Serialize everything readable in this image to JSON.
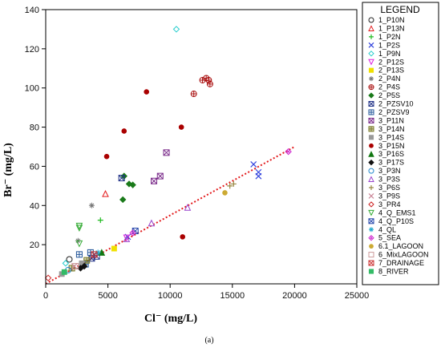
{
  "chart_data": {
    "type": "scatter",
    "xlabel": "Cl⁻ (mg/L)",
    "ylabel": "Br⁻ (mg/L)",
    "xlim": [
      0,
      25000
    ],
    "ylim": [
      0,
      140
    ],
    "x_ticks": [
      0,
      5000,
      10000,
      15000,
      20000,
      25000
    ],
    "y_ticks": [
      20,
      40,
      60,
      80,
      100,
      120,
      140
    ],
    "grid": false,
    "legend_title": "LEGEND",
    "legend_position": "right",
    "caption": "(a)",
    "trendline": {
      "style": "dotted",
      "color": "#e31a1c",
      "points": [
        [
          0,
          0
        ],
        [
          20000,
          70
        ]
      ]
    },
    "series": [
      {
        "name": "1_P10N",
        "marker": "circle-open",
        "color": "#222222",
        "points": [
          [
            1900,
            12.5
          ]
        ]
      },
      {
        "name": "1_P13N",
        "marker": "triangle-open",
        "color": "#e31a1c",
        "points": [
          [
            4800,
            46
          ]
        ]
      },
      {
        "name": "1_P2N",
        "marker": "plus",
        "color": "#22bb22",
        "points": [
          [
            4400,
            32.5
          ]
        ]
      },
      {
        "name": "1_P2S",
        "marker": "x",
        "color": "#3344dd",
        "points": [
          [
            16700,
            61
          ],
          [
            17100,
            55
          ],
          [
            17100,
            57
          ],
          [
            6600,
            24
          ]
        ]
      },
      {
        "name": "1_P9N",
        "marker": "diamond-open",
        "color": "#22cccc",
        "points": [
          [
            10500,
            130
          ],
          [
            1600,
            10.5
          ]
        ]
      },
      {
        "name": "2_P12S",
        "marker": "triangle-down-open",
        "color": "#dd22dd",
        "points": [
          [
            6500,
            23.5
          ]
        ]
      },
      {
        "name": "2_P13S",
        "marker": "square-filled",
        "color": "#f0e000",
        "points": [
          [
            5500,
            18
          ]
        ]
      },
      {
        "name": "2_P4N",
        "marker": "asterisk",
        "color": "#777777",
        "points": [
          [
            3700,
            40
          ],
          [
            2600,
            22
          ]
        ]
      },
      {
        "name": "2_P4S",
        "marker": "circle-cross",
        "color": "#aa1111",
        "points": [
          [
            12900,
            105
          ],
          [
            12600,
            104
          ],
          [
            13100,
            104
          ],
          [
            13200,
            102
          ],
          [
            11900,
            97
          ]
        ]
      },
      {
        "name": "2_P5S",
        "marker": "diamond-filled",
        "color": "#1a7a1a",
        "points": [
          [
            6300,
            55
          ],
          [
            6200,
            43
          ],
          [
            6700,
            51
          ],
          [
            7000,
            50.5
          ]
        ]
      },
      {
        "name": "2_PZSV10",
        "marker": "square-x",
        "color": "#223388",
        "points": [
          [
            6100,
            54
          ],
          [
            4100,
            14
          ],
          [
            3700,
            13
          ]
        ]
      },
      {
        "name": "2_PZSV9",
        "marker": "square-plus",
        "color": "#225599",
        "points": [
          [
            2700,
            15
          ],
          [
            3600,
            16
          ],
          [
            3200,
            10
          ]
        ]
      },
      {
        "name": "3_P11N",
        "marker": "square-x",
        "color": "#7a2a8a",
        "points": [
          [
            9700,
            67
          ],
          [
            9200,
            55
          ],
          [
            8700,
            52.5
          ]
        ]
      },
      {
        "name": "3_P14N",
        "marker": "square-cross",
        "color": "#777722",
        "points": [
          [
            2100,
            8
          ],
          [
            3300,
            12
          ]
        ]
      },
      {
        "name": "3_P14S",
        "marker": "square-filled",
        "color": "#999999",
        "points": [
          [
            1300,
            5
          ],
          [
            2900,
            10.5
          ]
        ]
      },
      {
        "name": "3_P15N",
        "marker": "circle-filled",
        "color": "#aa0000",
        "points": [
          [
            8100,
            98
          ],
          [
            10900,
            80
          ],
          [
            6300,
            78
          ],
          [
            4900,
            65
          ],
          [
            11000,
            24
          ]
        ]
      },
      {
        "name": "3_P16S",
        "marker": "triangle-filled",
        "color": "#117711",
        "points": [
          [
            4500,
            16
          ]
        ]
      },
      {
        "name": "3_P17S",
        "marker": "diamond-filled",
        "color": "#111111",
        "points": [
          [
            2800,
            8
          ],
          [
            3100,
            9
          ]
        ]
      },
      {
        "name": "3_P3N",
        "marker": "circle-open",
        "color": "#2288cc",
        "points": [
          [
            1800,
            7
          ]
        ]
      },
      {
        "name": "3_P3S",
        "marker": "triangle-open",
        "color": "#9944cc",
        "points": [
          [
            11400,
            39
          ],
          [
            8500,
            31
          ],
          [
            6500,
            23
          ]
        ]
      },
      {
        "name": "3_P6S",
        "marker": "plus",
        "color": "#998844",
        "points": [
          [
            15100,
            51
          ],
          [
            14800,
            50
          ]
        ]
      },
      {
        "name": "3_P9S",
        "marker": "x",
        "color": "#cc8899",
        "points": [
          [
            2300,
            9
          ]
        ]
      },
      {
        "name": "3_PR4",
        "marker": "diamond-open",
        "color": "#cc2222",
        "points": [
          [
            200,
            3
          ]
        ]
      },
      {
        "name": "4_Q_EMS1",
        "marker": "triangle-down-open",
        "color": "#33aa33",
        "points": [
          [
            2700,
            29.5
          ],
          [
            2700,
            28.5
          ],
          [
            2700,
            20.5
          ]
        ]
      },
      {
        "name": "4_Q_P10S",
        "marker": "square-x",
        "color": "#2244aa",
        "points": [
          [
            7200,
            27
          ]
        ]
      },
      {
        "name": "4_QL",
        "marker": "asterisk",
        "color": "#22aacc",
        "points": [
          [
            4200,
            16
          ]
        ]
      },
      {
        "name": "5_SEA",
        "marker": "diamond-x",
        "color": "#cc22cc",
        "points": [
          [
            19500,
            67.5
          ],
          [
            7000,
            26
          ]
        ]
      },
      {
        "name": "6.1_LAGOON",
        "marker": "circle-filled",
        "color": "#ccaa33",
        "points": [
          [
            14400,
            46.5
          ]
        ]
      },
      {
        "name": "6_MixLAGOON",
        "marker": "square-open",
        "color": "#cc9999",
        "points": [
          [
            2400,
            9
          ]
        ]
      },
      {
        "name": "7_DRAINAGE",
        "marker": "square-x",
        "color": "#cc3333",
        "points": [
          [
            3900,
            15
          ]
        ]
      },
      {
        "name": "8_RIVER",
        "marker": "square-filled",
        "color": "#33bb66",
        "points": [
          [
            1500,
            6
          ]
        ]
      }
    ]
  }
}
